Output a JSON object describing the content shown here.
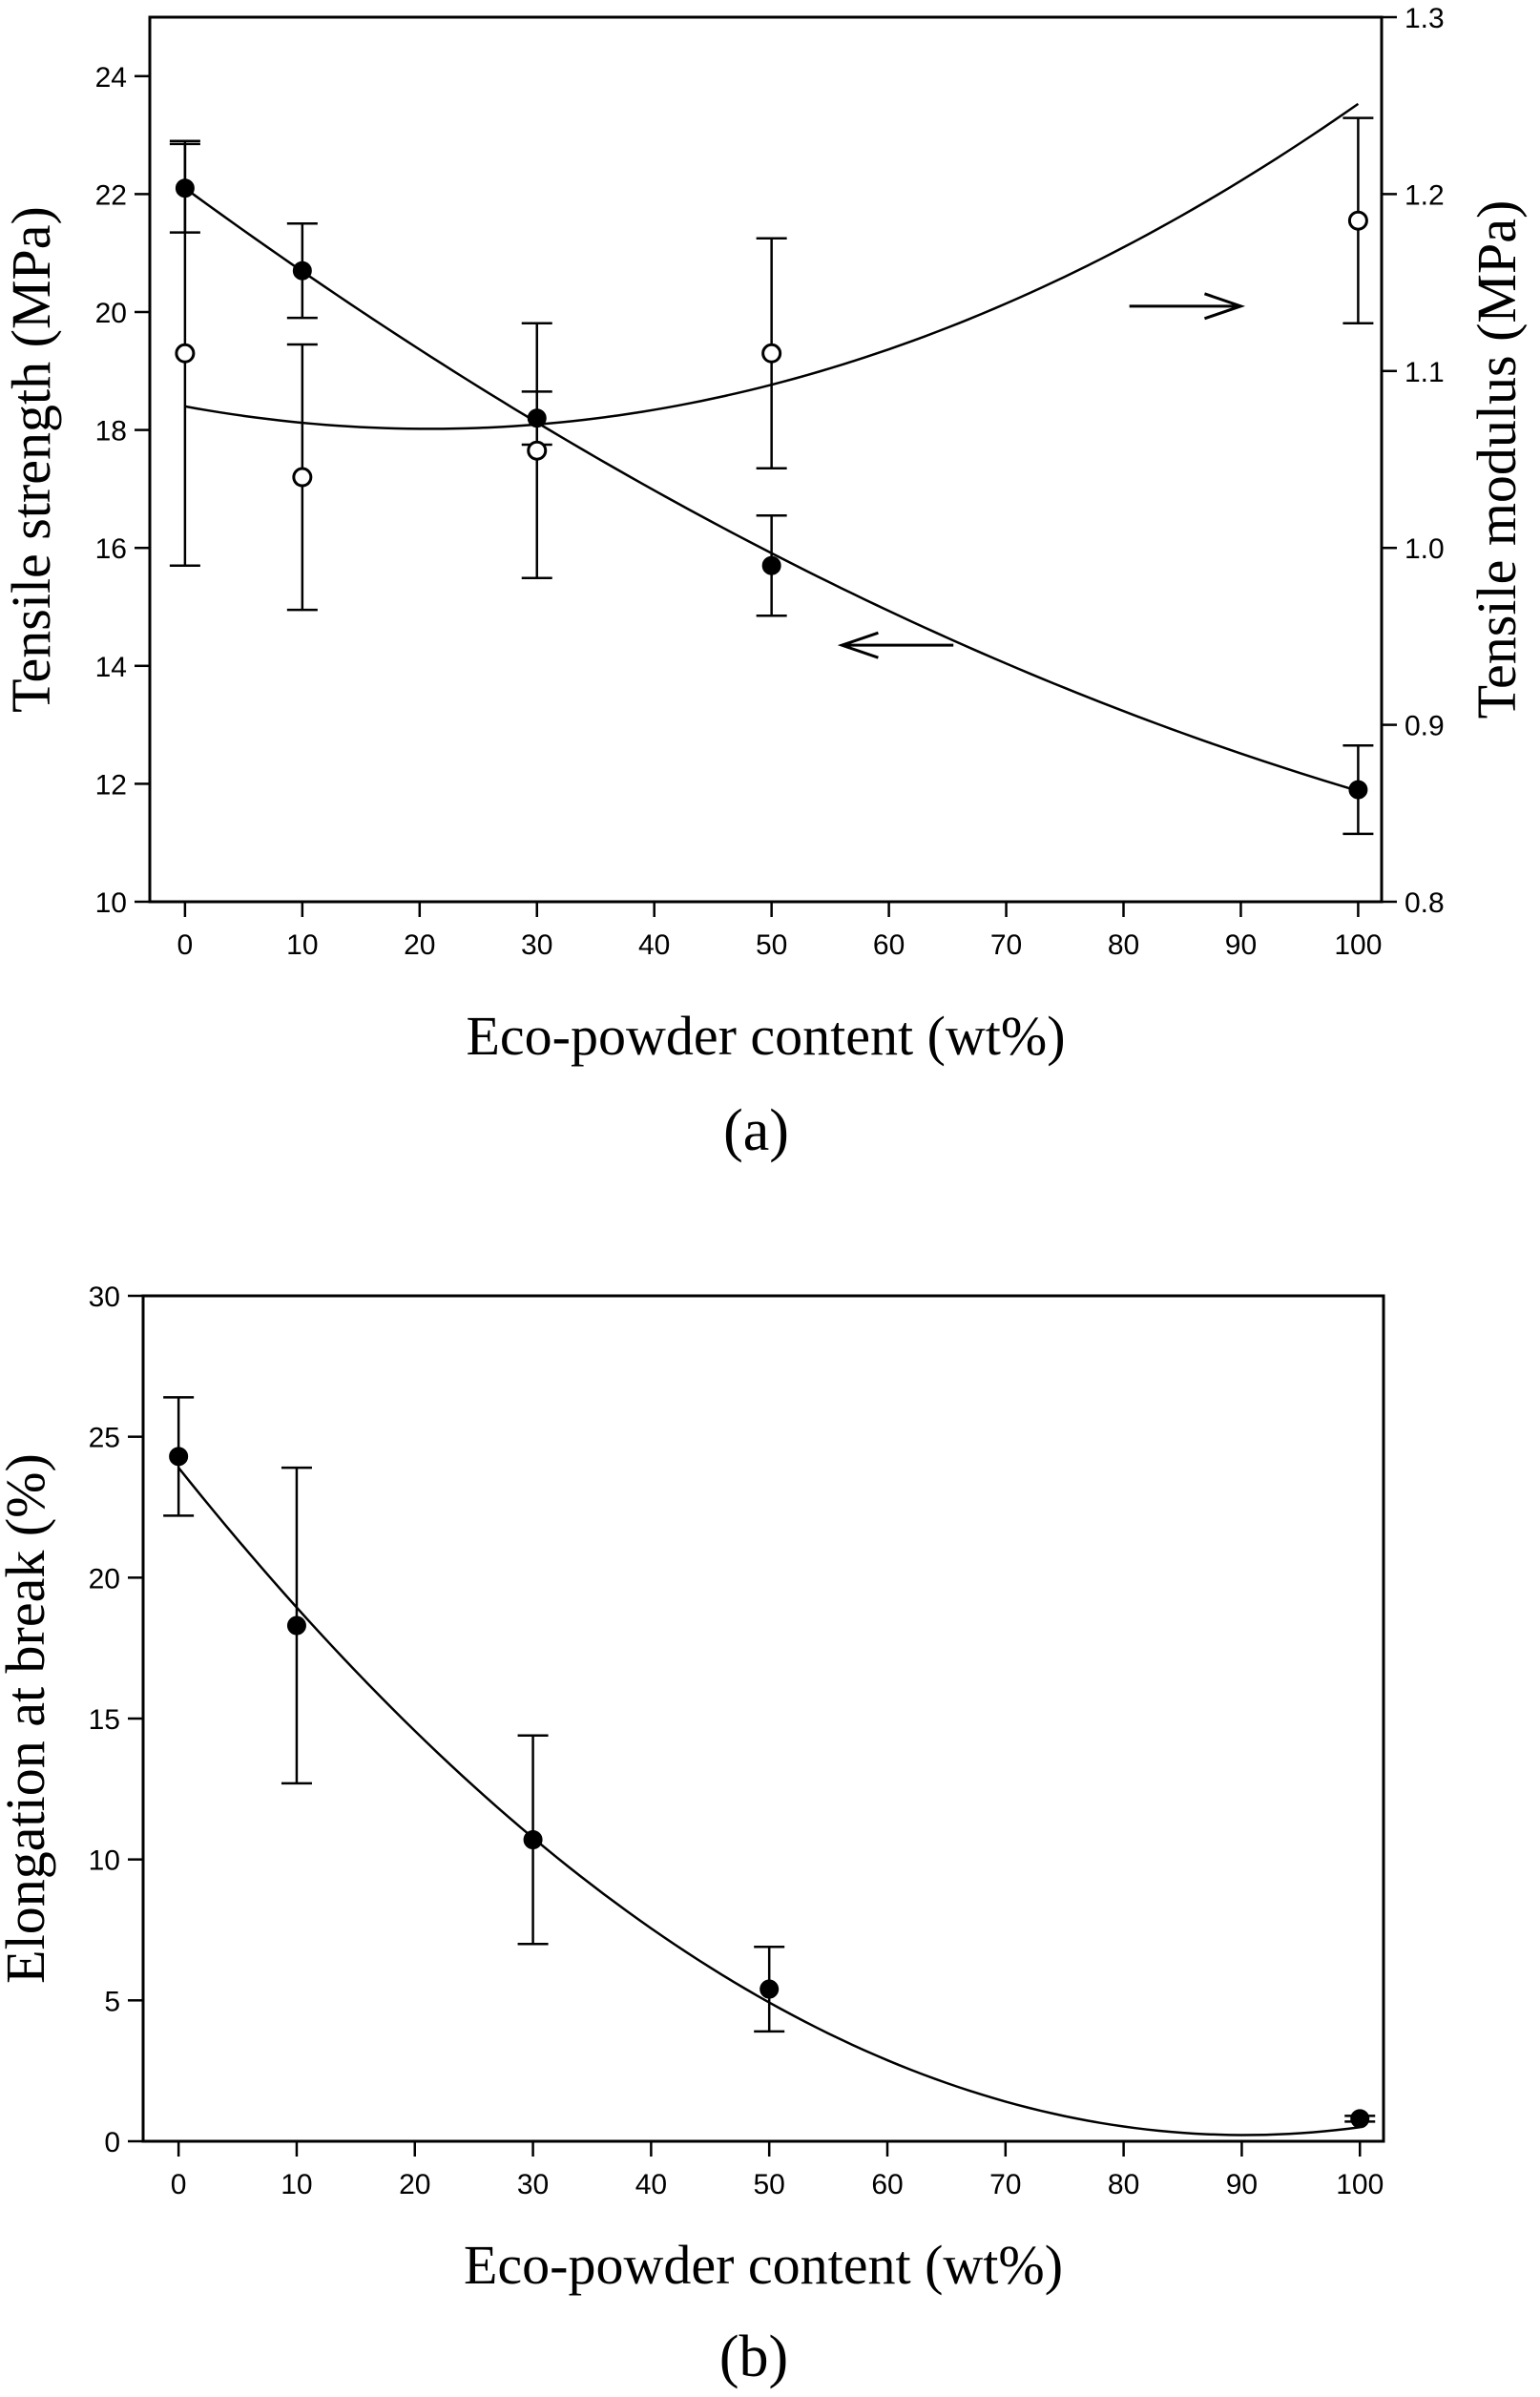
{
  "chart_data": [
    {
      "panel": "(a)",
      "type": "scatter",
      "xlabel": "Eco-powder content (wt%)",
      "xlim": [
        -3,
        102
      ],
      "xticks": [
        0,
        10,
        20,
        30,
        40,
        50,
        60,
        70,
        80,
        90,
        100
      ],
      "ylabel": "Tensile strength (MPa)",
      "ylim": [
        10,
        25
      ],
      "yticks": [
        10,
        12,
        14,
        16,
        18,
        20,
        22,
        24
      ],
      "y2label": "Tensile modulus (MPa)",
      "y2lim": [
        0.8,
        1.3
      ],
      "y2ticks": [
        "0.8",
        "0.9",
        "1.0",
        "1.1",
        "1.2",
        "1.3"
      ],
      "grid": false,
      "series": [
        {
          "marker": "filled-circle",
          "axis": "left",
          "x": [
            0,
            10,
            30,
            50,
            100
          ],
          "y": [
            22.1,
            20.7,
            18.2,
            15.7,
            11.9
          ],
          "error": [
            0.75,
            0.8,
            0.45,
            0.85,
            0.75
          ],
          "fit": [
            22.1,
            -0.1454,
            0.000432
          ]
        },
        {
          "marker": "open-circle",
          "axis": "right",
          "x": [
            0,
            10,
            30,
            50,
            100
          ],
          "y": [
            1.11,
            1.04,
            1.055,
            1.11,
            1.185
          ],
          "error": [
            0.12,
            0.075,
            0.072,
            0.065,
            0.058
          ],
          "fit": [
            1.08,
            -0.00122,
            2.93e-05
          ]
        }
      ]
    },
    {
      "panel": "(b)",
      "type": "scatter",
      "xlabel": "Eco-powder content (wt%)",
      "xlim": [
        -3,
        102
      ],
      "xticks": [
        0,
        10,
        20,
        30,
        40,
        50,
        60,
        70,
        80,
        90,
        100
      ],
      "ylabel": "Elongation at break (%)",
      "ylim": [
        0,
        30
      ],
      "yticks": [
        0,
        5,
        10,
        15,
        20,
        25,
        30
      ],
      "grid": false,
      "series": [
        {
          "marker": "filled-circle",
          "axis": "left",
          "x": [
            0,
            10,
            30,
            50,
            100
          ],
          "y": [
            24.3,
            18.3,
            10.7,
            5.4,
            0.8
          ],
          "error": [
            2.1,
            5.6,
            3.7,
            1.5,
            0.1
          ],
          "fit": [
            23.9,
            -0.525,
            0.00291
          ]
        }
      ]
    }
  ]
}
